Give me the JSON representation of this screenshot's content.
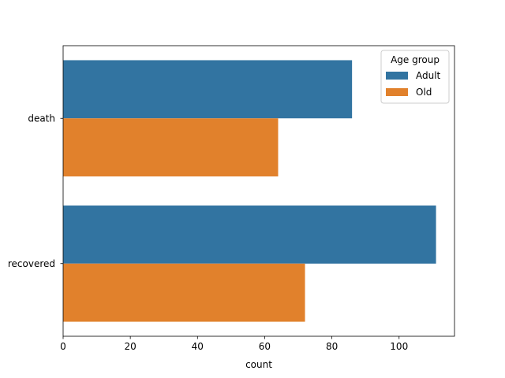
{
  "chart_data": {
    "type": "bar",
    "orientation": "horizontal",
    "categories": [
      "death",
      "recovered"
    ],
    "series": [
      {
        "name": "Adult",
        "values": [
          86,
          111
        ],
        "color": "#3274a1"
      },
      {
        "name": "Old",
        "values": [
          64,
          72
        ],
        "color": "#e1812c"
      }
    ],
    "title": "",
    "xlabel": "count",
    "ylabel": "",
    "xlim": [
      0,
      116.5
    ],
    "xticks": [
      0,
      20,
      40,
      60,
      80,
      100
    ],
    "grid": false,
    "legend": {
      "title": "Age group",
      "placement": "top-right"
    }
  }
}
